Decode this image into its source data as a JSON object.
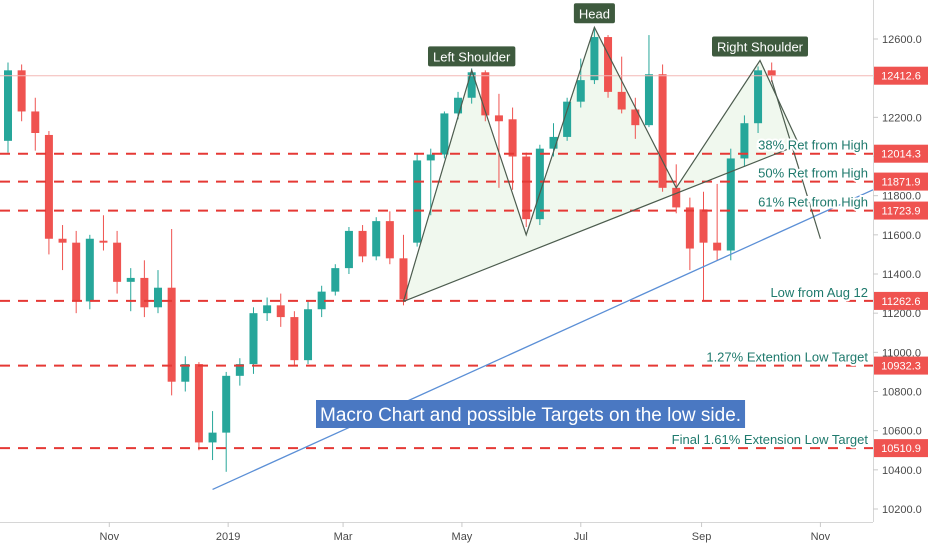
{
  "chart_data": {
    "type": "candlestick",
    "title": "",
    "ylim": [
      10100,
      12900
    ],
    "y_ticks": [
      10200,
      10400,
      10600,
      10800,
      11000,
      11200,
      11400,
      11600,
      11800,
      12000,
      12200,
      12400,
      12600
    ],
    "y_tick_labels": [
      "10200.0",
      "10400.0",
      "10600.0",
      "10800.0",
      "11000.0",
      "11200.0",
      "11400.0",
      "11600.0",
      "11800.0",
      "12000.0",
      "12200.0",
      "12400.0",
      "12600.0"
    ],
    "x_range": [
      "2018-09-10",
      "2019-11-28"
    ],
    "x_ticks": [
      {
        "date": "2018-11-01",
        "label": "Nov"
      },
      {
        "date": "2019-01-01",
        "label": "2019"
      },
      {
        "date": "2019-03-01",
        "label": "Mar"
      },
      {
        "date": "2019-05-01",
        "label": "May"
      },
      {
        "date": "2019-07-01",
        "label": "Jul"
      },
      {
        "date": "2019-09-01",
        "label": "Sep"
      },
      {
        "date": "2019-11-01",
        "label": "Nov"
      }
    ],
    "colors": {
      "up": "#26a69a",
      "down": "#ef5350",
      "level": "#e53935",
      "trend": "#5b8fd6",
      "pattern": "#4c5c4e",
      "tag": "#ef5350",
      "banner": "#4a78c2",
      "callout": "#3e5a3e"
    },
    "candles": [
      {
        "date": "2018-09-10",
        "o": 12080,
        "h": 12480,
        "l": 12020,
        "c": 12440
      },
      {
        "date": "2018-09-17",
        "o": 12440,
        "h": 12470,
        "l": 12180,
        "c": 12230
      },
      {
        "date": "2018-09-24",
        "o": 12230,
        "h": 12300,
        "l": 12030,
        "c": 12120
      },
      {
        "date": "2018-10-01",
        "o": 12110,
        "h": 12130,
        "l": 11500,
        "c": 11580
      },
      {
        "date": "2018-10-08",
        "o": 11580,
        "h": 11650,
        "l": 11420,
        "c": 11560
      },
      {
        "date": "2018-10-15",
        "o": 11560,
        "h": 11620,
        "l": 11200,
        "c": 11260
      },
      {
        "date": "2018-10-22",
        "o": 11260,
        "h": 11600,
        "l": 11220,
        "c": 11580
      },
      {
        "date": "2018-10-29",
        "o": 11570,
        "h": 11700,
        "l": 11520,
        "c": 11560
      },
      {
        "date": "2018-11-05",
        "o": 11560,
        "h": 11620,
        "l": 11300,
        "c": 11360
      },
      {
        "date": "2018-11-12",
        "o": 11360,
        "h": 11430,
        "l": 11210,
        "c": 11380
      },
      {
        "date": "2018-11-19",
        "o": 11380,
        "h": 11470,
        "l": 11180,
        "c": 11230
      },
      {
        "date": "2018-11-26",
        "o": 11230,
        "h": 11420,
        "l": 11200,
        "c": 11330
      },
      {
        "date": "2018-12-03",
        "o": 11330,
        "h": 11630,
        "l": 10780,
        "c": 10850
      },
      {
        "date": "2018-12-10",
        "o": 10850,
        "h": 10980,
        "l": 10800,
        "c": 10940
      },
      {
        "date": "2018-12-17",
        "o": 10940,
        "h": 10950,
        "l": 10500,
        "c": 10540
      },
      {
        "date": "2018-12-24",
        "o": 10540,
        "h": 10700,
        "l": 10450,
        "c": 10590
      },
      {
        "date": "2018-12-31",
        "o": 10590,
        "h": 10900,
        "l": 10390,
        "c": 10880
      },
      {
        "date": "2019-01-07",
        "o": 10880,
        "h": 10970,
        "l": 10830,
        "c": 10940
      },
      {
        "date": "2019-01-14",
        "o": 10940,
        "h": 11230,
        "l": 10890,
        "c": 11200
      },
      {
        "date": "2019-01-21",
        "o": 11200,
        "h": 11280,
        "l": 11160,
        "c": 11240
      },
      {
        "date": "2019-01-28",
        "o": 11240,
        "h": 11300,
        "l": 11130,
        "c": 11180
      },
      {
        "date": "2019-02-04",
        "o": 11180,
        "h": 11210,
        "l": 10930,
        "c": 10960
      },
      {
        "date": "2019-02-11",
        "o": 10960,
        "h": 11260,
        "l": 10940,
        "c": 11220
      },
      {
        "date": "2019-02-18",
        "o": 11220,
        "h": 11340,
        "l": 11180,
        "c": 11310
      },
      {
        "date": "2019-02-25",
        "o": 11310,
        "h": 11450,
        "l": 11290,
        "c": 11430
      },
      {
        "date": "2019-03-04",
        "o": 11430,
        "h": 11640,
        "l": 11400,
        "c": 11620
      },
      {
        "date": "2019-03-11",
        "o": 11620,
        "h": 11650,
        "l": 11460,
        "c": 11490
      },
      {
        "date": "2019-03-18",
        "o": 11490,
        "h": 11690,
        "l": 11470,
        "c": 11670
      },
      {
        "date": "2019-03-25",
        "o": 11670,
        "h": 11720,
        "l": 11450,
        "c": 11480
      },
      {
        "date": "2019-04-01",
        "o": 11480,
        "h": 11600,
        "l": 11240,
        "c": 11270
      },
      {
        "date": "2019-04-08",
        "o": 11560,
        "h": 12010,
        "l": 11540,
        "c": 11980
      },
      {
        "date": "2019-04-15",
        "o": 11980,
        "h": 12040,
        "l": 11700,
        "c": 12010
      },
      {
        "date": "2019-04-22",
        "o": 12010,
        "h": 12230,
        "l": 11990,
        "c": 12220
      },
      {
        "date": "2019-04-29",
        "o": 12220,
        "h": 12330,
        "l": 12190,
        "c": 12300
      },
      {
        "date": "2019-05-06",
        "o": 12300,
        "h": 12450,
        "l": 12270,
        "c": 12430
      },
      {
        "date": "2019-05-13",
        "o": 12430,
        "h": 12440,
        "l": 12180,
        "c": 12210
      },
      {
        "date": "2019-05-20",
        "o": 12210,
        "h": 12320,
        "l": 11840,
        "c": 12180
      },
      {
        "date": "2019-05-27",
        "o": 12190,
        "h": 12250,
        "l": 11830,
        "c": 12000
      },
      {
        "date": "2019-06-03",
        "o": 12000,
        "h": 12020,
        "l": 11640,
        "c": 11680
      },
      {
        "date": "2019-06-10",
        "o": 11680,
        "h": 12060,
        "l": 11650,
        "c": 12040
      },
      {
        "date": "2019-06-17",
        "o": 12040,
        "h": 12170,
        "l": 12000,
        "c": 12100
      },
      {
        "date": "2019-06-24",
        "o": 12100,
        "h": 12300,
        "l": 12080,
        "c": 12280
      },
      {
        "date": "2019-07-01",
        "o": 12280,
        "h": 12500,
        "l": 12250,
        "c": 12390
      },
      {
        "date": "2019-07-08",
        "o": 12390,
        "h": 12660,
        "l": 12370,
        "c": 12610
      },
      {
        "date": "2019-07-15",
        "o": 12610,
        "h": 12620,
        "l": 12300,
        "c": 12330
      },
      {
        "date": "2019-07-22",
        "o": 12330,
        "h": 12510,
        "l": 12220,
        "c": 12240
      },
      {
        "date": "2019-07-29",
        "o": 12240,
        "h": 12300,
        "l": 12090,
        "c": 12160
      },
      {
        "date": "2019-08-05",
        "o": 12160,
        "h": 12620,
        "l": 12150,
        "c": 12420
      },
      {
        "date": "2019-08-12",
        "o": 12420,
        "h": 12470,
        "l": 11820,
        "c": 11840
      },
      {
        "date": "2019-08-19",
        "o": 11840,
        "h": 11960,
        "l": 11710,
        "c": 11740
      },
      {
        "date": "2019-08-26",
        "o": 11740,
        "h": 11790,
        "l": 11420,
        "c": 11530
      },
      {
        "date": "2019-09-02",
        "o": 11730,
        "h": 11820,
        "l": 11260,
        "c": 11560
      },
      {
        "date": "2019-09-09",
        "o": 11560,
        "h": 11860,
        "l": 11470,
        "c": 11520
      },
      {
        "date": "2019-09-16",
        "o": 11520,
        "h": 12040,
        "l": 11470,
        "c": 11990
      },
      {
        "date": "2019-09-23",
        "o": 11990,
        "h": 12210,
        "l": 11950,
        "c": 12170
      },
      {
        "date": "2019-09-30",
        "o": 12170,
        "h": 12460,
        "l": 12120,
        "c": 12440
      },
      {
        "date": "2019-10-07",
        "o": 12440,
        "h": 12480,
        "l": 12380,
        "c": 12412.6
      }
    ],
    "levels": [
      {
        "value": 12014.3,
        "label": "38% Ret from High",
        "tag": "12014.3"
      },
      {
        "value": 11871.9,
        "label": "50% Ret from High",
        "tag": "11871.9"
      },
      {
        "value": 11723.9,
        "label": "61% Ret from High",
        "tag": "11723.9"
      },
      {
        "value": 11262.6,
        "label": "Low from Aug 12",
        "tag": "11262.6"
      },
      {
        "value": 10932.3,
        "label": "1.27% Extention Low Target",
        "tag": "10932.3"
      },
      {
        "value": 10510.9,
        "label": "Final 1.61% Extension Low Target",
        "tag": "10510.9"
      }
    ],
    "last_price": {
      "value": 12412.6,
      "tag": "12412.6"
    },
    "trendline": {
      "from": {
        "date": "2018-12-24",
        "value": 10300
      },
      "to": {
        "date": "2019-11-28",
        "value": 11830
      }
    },
    "pattern": {
      "neckline": [
        {
          "date": "2019-04-01",
          "value": 11260
        },
        {
          "date": "2019-10-21",
          "value": 12060
        }
      ],
      "outline": [
        {
          "date": "2019-04-01",
          "value": 11260
        },
        {
          "date": "2019-05-06",
          "value": 12440
        },
        {
          "date": "2019-06-03",
          "value": 11600
        },
        {
          "date": "2019-07-08",
          "value": 12660
        },
        {
          "date": "2019-08-19",
          "value": 11840
        },
        {
          "date": "2019-10-01",
          "value": 12490
        },
        {
          "date": "2019-10-21",
          "value": 12060
        }
      ],
      "projection": [
        {
          "date": "2019-10-07",
          "value": 12390
        },
        {
          "date": "2019-11-01",
          "value": 11580
        }
      ]
    },
    "callouts": [
      {
        "text": "Left Shoulder",
        "date": "2019-05-06",
        "value": 12440
      },
      {
        "text": "Head",
        "date": "2019-07-08",
        "value": 12660
      },
      {
        "text": "Right Shoulder",
        "date": "2019-10-01",
        "value": 12490
      }
    ],
    "banner": "Macro Chart and possible Targets on the low side."
  }
}
